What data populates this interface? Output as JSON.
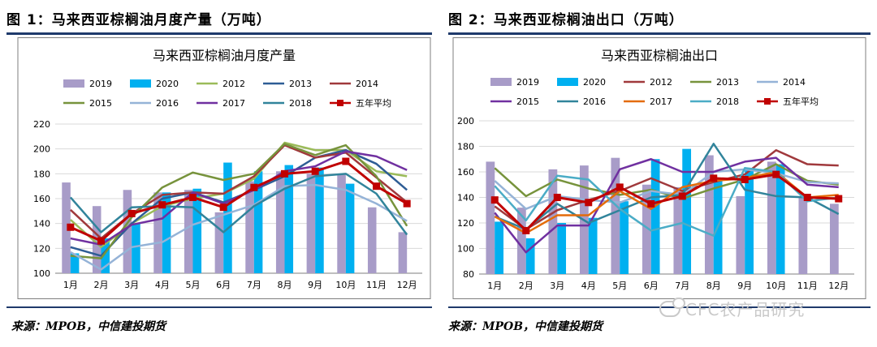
{
  "left": {
    "fig_title": "图 1：马来西亚棕榈油月度产量（万吨）",
    "source": "来源：MPOB，中信建投期货"
  },
  "right": {
    "fig_title": "图 2：马来西亚棕榈油出口（万吨）",
    "source": "来源：MPOB，中信建投期货"
  },
  "watermark": "CFC农产品研究",
  "chart_data": [
    {
      "type": "bar+line",
      "title": "马来西亚棕榈油月度产量",
      "categories": [
        "1月",
        "2月",
        "3月",
        "4月",
        "5月",
        "6月",
        "7月",
        "8月",
        "9月",
        "10月",
        "11月",
        "12月"
      ],
      "ylim": [
        100,
        220
      ],
      "yticks": [
        100,
        120,
        140,
        160,
        180,
        200,
        220
      ],
      "legend_position": "top",
      "series": [
        {
          "name": "2019",
          "kind": "bar",
          "color": "#a89cc8",
          "values": [
            173,
            154,
            167,
            165,
            167,
            149,
            174,
            182,
            180,
            180,
            153,
            133
          ]
        },
        {
          "name": "2020",
          "kind": "bar",
          "color": "#00b0f0",
          "values": [
            116,
            128,
            140,
            165,
            168,
            189,
            182,
            187,
            185,
            172,
            null,
            null
          ]
        },
        {
          "name": "2012",
          "kind": "line",
          "color": "#9bbb59",
          "values": [
            143,
            121,
            140,
            154,
            160,
            164,
            176,
            205,
            199,
            199,
            182,
            178
          ]
        },
        {
          "name": "2013",
          "kind": "line",
          "color": "#2e5d95",
          "values": [
            121,
            114,
            140,
            160,
            165,
            157,
            167,
            178,
            193,
            199,
            188,
            167
          ]
        },
        {
          "name": "2014",
          "kind": "line",
          "color": "#a0393c",
          "values": [
            151,
            128,
            148,
            163,
            165,
            164,
            178,
            203,
            193,
            197,
            177,
            157
          ]
        },
        {
          "name": "2015",
          "kind": "line",
          "color": "#77933c",
          "values": [
            114,
            112,
            145,
            169,
            181,
            175,
            180,
            204,
            195,
            203,
            178,
            138
          ]
        },
        {
          "name": "2016",
          "kind": "line",
          "color": "#95b3d7",
          "values": [
            117,
            103,
            121,
            125,
            139,
            147,
            155,
            170,
            171,
            167,
            156,
            142
          ]
        },
        {
          "name": "2017",
          "kind": "line",
          "color": "#7030a0",
          "values": [
            128,
            123,
            139,
            144,
            165,
            156,
            167,
            182,
            186,
            198,
            194,
            183
          ]
        },
        {
          "name": "2018",
          "kind": "line",
          "color": "#31849b",
          "values": [
            161,
            133,
            153,
            154,
            153,
            133,
            154,
            168,
            178,
            180,
            164,
            131
          ]
        },
        {
          "name": "五年平均",
          "kind": "line-marker",
          "color": "#c00000",
          "values": [
            137,
            126,
            148,
            155,
            161,
            153,
            169,
            180,
            182,
            190,
            170,
            156
          ]
        }
      ]
    },
    {
      "type": "bar+line",
      "title": "马来西亚棕榈油出口",
      "categories": [
        "1月",
        "2月",
        "3月",
        "4月",
        "5月",
        "6月",
        "7月",
        "8月",
        "9月",
        "10月",
        "11月",
        "12月"
      ],
      "ylim": [
        80,
        200
      ],
      "yticks": [
        80,
        100,
        120,
        140,
        160,
        180,
        200
      ],
      "legend_position": "top",
      "series": [
        {
          "name": "2019",
          "kind": "bar",
          "color": "#a89cc8",
          "values": [
            168,
            132,
            162,
            165,
            171,
            150,
            148,
            173,
            141,
            168,
            140,
            135
          ]
        },
        {
          "name": "2020",
          "kind": "bar",
          "color": "#00b0f0",
          "values": [
            121,
            108,
            120,
            124,
            137,
            170,
            178,
            155,
            163,
            166,
            null,
            null
          ]
        },
        {
          "name": "2012",
          "kind": "line",
          "color": "#a0393c",
          "values": [
            133,
            115,
            130,
            138,
            145,
            155,
            145,
            152,
            158,
            177,
            166,
            165
          ]
        },
        {
          "name": "2013",
          "kind": "line",
          "color": "#77933c",
          "values": [
            163,
            141,
            154,
            147,
            142,
            146,
            139,
            147,
            154,
            166,
            153,
            150
          ]
        },
        {
          "name": "2014",
          "kind": "line",
          "color": "#95b3d7",
          "values": [
            153,
            131,
            141,
            138,
            136,
            145,
            142,
            160,
            162,
            159,
            152,
            151
          ]
        },
        {
          "name": "2015",
          "kind": "line",
          "color": "#7030a0",
          "values": [
            128,
            97,
            118,
            118,
            162,
            170,
            160,
            160,
            168,
            171,
            150,
            148
          ]
        },
        {
          "name": "2016",
          "kind": "line",
          "color": "#31849b",
          "values": [
            125,
            115,
            135,
            120,
            130,
            140,
            142,
            182,
            146,
            141,
            140,
            127
          ]
        },
        {
          "name": "2017",
          "kind": "line",
          "color": "#e46c0a",
          "values": [
            125,
            112,
            126,
            126,
            145,
            131,
            148,
            153,
            155,
            160,
            140,
            142
          ]
        },
        {
          "name": "2018",
          "kind": "line",
          "color": "#4bacc6",
          "values": [
            149,
            122,
            157,
            154,
            131,
            114,
            120,
            110,
            163,
            160,
            137,
            140
          ]
        },
        {
          "name": "五年平均",
          "kind": "line-marker",
          "color": "#c00000",
          "values": [
            138,
            114,
            140,
            136,
            148,
            135,
            141,
            155,
            154,
            158,
            140,
            139
          ]
        }
      ]
    }
  ]
}
